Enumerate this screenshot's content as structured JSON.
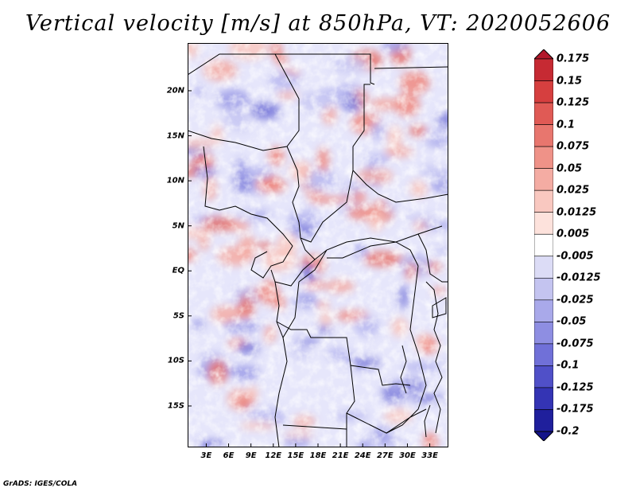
{
  "title": "Vertical velocity [m/s] at 850hPa, VT: 2020052606",
  "map": {
    "lat_labels": [
      "20N",
      "15N",
      "10N",
      "5N",
      "EQ",
      "5S",
      "10S",
      "15S"
    ],
    "lon_labels": [
      "3E",
      "6E",
      "9E",
      "12E",
      "15E",
      "18E",
      "21E",
      "24E",
      "27E",
      "30E",
      "33E"
    ],
    "lat_values": [
      20,
      15,
      10,
      5,
      0,
      -5,
      -10,
      -15
    ],
    "lon_values": [
      3,
      6,
      9,
      12,
      15,
      18,
      21,
      24,
      27,
      30,
      33
    ],
    "lon_range": [
      0.5,
      35.5
    ],
    "lat_range": [
      -19.6,
      25.3
    ]
  },
  "colorbar": {
    "labels": [
      "0.175",
      "0.15",
      "0.125",
      "0.1",
      "0.075",
      "0.05",
      "0.025",
      "0.0125",
      "0.005",
      "-0.005",
      "-0.0125",
      "-0.025",
      "-0.05",
      "-0.075",
      "-0.1",
      "-0.125",
      "-0.175",
      "-0.2"
    ],
    "colors": [
      "#b2182b",
      "#c62a33",
      "#d63f3f",
      "#e05a55",
      "#e8766e",
      "#ef9288",
      "#f4aca3",
      "#f9c8c0",
      "#fde2dc",
      "#ffffff",
      "#dcdcf6",
      "#c4c4f0",
      "#a9a9ea",
      "#8e8ee2",
      "#7070d8",
      "#5050c8",
      "#3434b4",
      "#1f1f9c",
      "#14148a"
    ]
  },
  "footer": "GrADS: IGES/COLA"
}
